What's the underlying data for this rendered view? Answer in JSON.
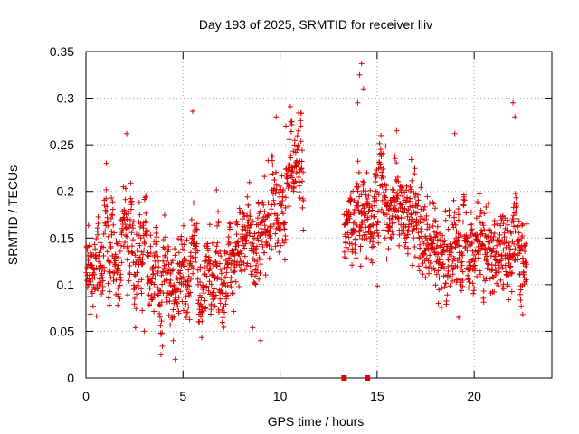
{
  "chart_data": {
    "type": "scatter",
    "title": "Day 193 of 2025, SRMTID for receiver lliv",
    "xlabel": "GPS time / hours",
    "ylabel": "SRMTID / TECUs",
    "xlim": [
      0,
      24
    ],
    "ylim": [
      0,
      0.35
    ],
    "xticks": [
      0,
      5,
      10,
      15,
      20
    ],
    "xtick_labels": [
      "0",
      "5",
      "10",
      "15",
      "20"
    ],
    "yticks": [
      0,
      0.05,
      0.1,
      0.15,
      0.2,
      0.25,
      0.3,
      0.35
    ],
    "ytick_labels": [
      "0",
      "0.05",
      "0.1",
      "0.15",
      "0.2",
      "0.25",
      "0.3",
      "0.35"
    ],
    "grid": true,
    "marker": "plus",
    "color": "#dd0000",
    "zero_markers": [
      13.3,
      14.5
    ],
    "series": [
      {
        "name": "SRMTID",
        "segments": [
          {
            "t_start": 0.0,
            "t_end": 11.2,
            "trend_t": [
              0,
              1,
              2,
              3,
              4,
              5,
              6,
              7,
              8,
              9,
              10,
              11.2
            ],
            "trend_v": [
              0.125,
              0.14,
              0.15,
              0.125,
              0.105,
              0.105,
              0.1,
              0.11,
              0.14,
              0.17,
              0.21,
              0.225
            ],
            "spread": 0.035,
            "n": 1050
          },
          {
            "t_start": 13.3,
            "t_end": 22.7,
            "trend_t": [
              13.3,
              14,
              15,
              16,
              17,
              18,
              19,
              20,
              21,
              22,
              22.7
            ],
            "trend_v": [
              0.16,
              0.18,
              0.18,
              0.17,
              0.16,
              0.15,
              0.13,
              0.15,
              0.15,
              0.15,
              0.14
            ],
            "spread": 0.035,
            "n": 930
          }
        ],
        "points": [
          [
            14.2,
            0.337
          ],
          [
            14.1,
            0.325
          ],
          [
            14.3,
            0.31
          ],
          [
            14.0,
            0.295
          ],
          [
            5.5,
            0.286
          ],
          [
            19.0,
            0.262
          ],
          [
            2.1,
            0.262
          ],
          [
            22.0,
            0.295
          ],
          [
            22.1,
            0.28
          ],
          [
            9.8,
            0.28
          ],
          [
            10.6,
            0.275
          ],
          [
            10.3,
            0.27
          ],
          [
            16.0,
            0.265
          ],
          [
            15.2,
            0.26
          ],
          [
            4.6,
            0.02
          ],
          [
            4.5,
            0.04
          ],
          [
            9.0,
            0.04
          ],
          [
            3.0,
            0.05
          ],
          [
            19.2,
            0.065
          ],
          [
            22.5,
            0.068
          ]
        ]
      }
    ]
  }
}
